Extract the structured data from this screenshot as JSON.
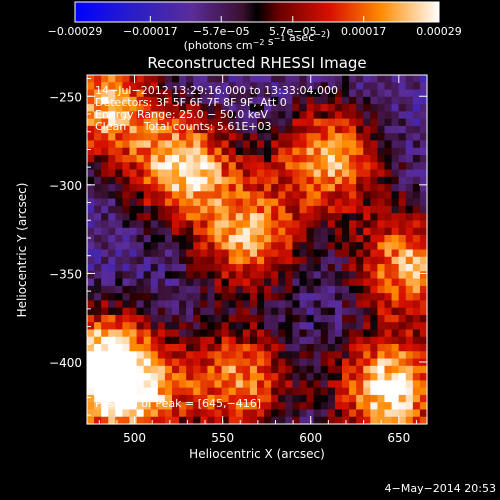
{
  "chart_data": {
    "type": "heatmap",
    "title": "Reconstructed RHESSI Image",
    "xlabel": "Heliocentric X (arcsec)",
    "ylabel": "Heliocentric Y (arcsec)",
    "xlim": [
      473,
      666
    ],
    "ylim": [
      -435,
      -238
    ],
    "xticks": [
      {
        "value": 500,
        "label": "500"
      },
      {
        "value": 550,
        "label": "550"
      },
      {
        "value": 600,
        "label": "600"
      },
      {
        "value": 650,
        "label": "650"
      }
    ],
    "yticks": [
      {
        "value": -250,
        "label": "−250"
      },
      {
        "value": -300,
        "label": "−300"
      },
      {
        "value": -350,
        "label": "−350"
      },
      {
        "value": -400,
        "label": "−400"
      }
    ],
    "colorbar": {
      "range": [
        -0.00029,
        0.00029
      ],
      "ticks": [
        {
          "value": -0.00029,
          "label": "−0.00029"
        },
        {
          "value": -0.00017,
          "label": "−0.00017"
        },
        {
          "value": -5.7e-05,
          "label": "−5.7e−05"
        },
        {
          "value": 5.7e-05,
          "label": "5.7e−05"
        },
        {
          "value": 0.00017,
          "label": "0.00017"
        },
        {
          "value": 0.00029,
          "label": "0.00029"
        }
      ],
      "label_prefix": "(photons cm",
      "label_exp1": "−2",
      "label_mid": " s",
      "label_exp2": "−1",
      "label_mid2": " asec",
      "label_exp3": "−2",
      "label_suffix": ")"
    },
    "annotations": [
      "14−Jul−2012 13:29:16.000 to 13:33:04.000",
      "Detectors: 3F 5F 6F 7F 8F 9F, Att 0",
      "Energy Range: 25.0 − 50.0 keV",
      "Clean     Total counts: 5.61E+03"
    ],
    "peak_label": "Position of Peak = [645,−416]",
    "peak": [
      645,
      -416
    ],
    "bright_regions": [
      {
        "x": 480,
        "y": -400,
        "value": 0.00026
      },
      {
        "x": 482,
        "y": -255,
        "value": 0.00022
      },
      {
        "x": 528,
        "y": -290,
        "value": 0.00025
      },
      {
        "x": 565,
        "y": -330,
        "value": 0.0002
      },
      {
        "x": 610,
        "y": -285,
        "value": 0.00022
      },
      {
        "x": 655,
        "y": -345,
        "value": 0.00022
      },
      {
        "x": 645,
        "y": -416,
        "value": 0.00029
      },
      {
        "x": 500,
        "y": -420,
        "value": 0.00018
      },
      {
        "x": 560,
        "y": -410,
        "value": 0.00019
      }
    ]
  },
  "timestamp": "4−May−2014 20:53"
}
